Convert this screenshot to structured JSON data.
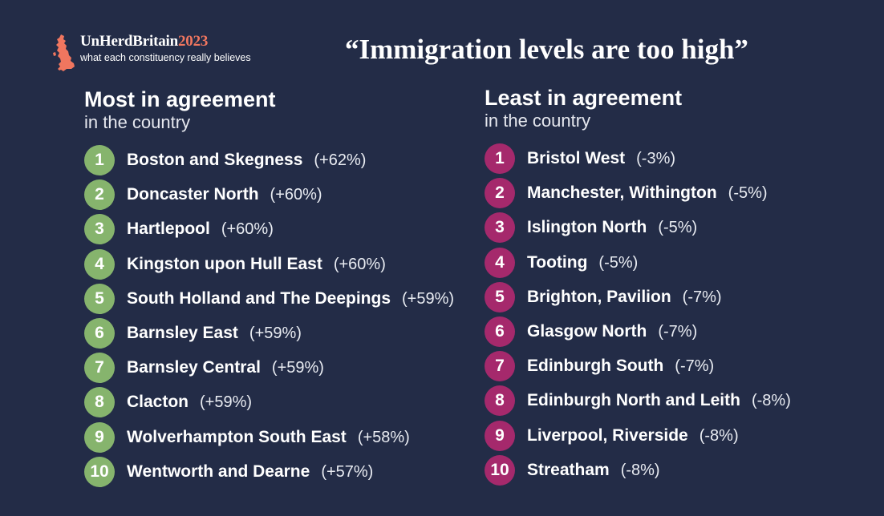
{
  "logo": {
    "brand_main": "UnHerdBritain",
    "brand_year": "2023",
    "tagline": "what each constituency really believes",
    "icon": "uk-map-icon",
    "accent_color": "#f0765f"
  },
  "headline": "“Immigration levels are too high”",
  "colors": {
    "background": "#232c47",
    "most_badge": "#86b46d",
    "least_badge": "#a5296c"
  },
  "most": {
    "title": "Most in agreement",
    "subtitle": "in the country",
    "items": [
      {
        "rank": "1",
        "name": "Boston and Skegness",
        "pct": "(+62%)"
      },
      {
        "rank": "2",
        "name": "Doncaster North",
        "pct": "(+60%)"
      },
      {
        "rank": "3",
        "name": "Hartlepool",
        "pct": "(+60%)"
      },
      {
        "rank": "4",
        "name": "Kingston upon Hull East",
        "pct": "(+60%)"
      },
      {
        "rank": "5",
        "name": "South Holland and The Deepings",
        "pct": "(+59%)"
      },
      {
        "rank": "6",
        "name": "Barnsley East",
        "pct": "(+59%)"
      },
      {
        "rank": "7",
        "name": "Barnsley Central",
        "pct": "(+59%)"
      },
      {
        "rank": "8",
        "name": "Clacton",
        "pct": "(+59%)"
      },
      {
        "rank": "9",
        "name": "Wolverhampton South East",
        "pct": "(+58%)"
      },
      {
        "rank": "10",
        "name": "Wentworth and Dearne",
        "pct": "(+57%)"
      }
    ]
  },
  "least": {
    "title": "Least in agreement",
    "subtitle": "in the country",
    "items": [
      {
        "rank": "1",
        "name": "Bristol West",
        "pct": "(-3%)"
      },
      {
        "rank": "2",
        "name": "Manchester, Withington",
        "pct": "(-5%)"
      },
      {
        "rank": "3",
        "name": "Islington North",
        "pct": "(-5%)"
      },
      {
        "rank": "4",
        "name": "Tooting",
        "pct": "(-5%)"
      },
      {
        "rank": "5",
        "name": "Brighton, Pavilion",
        "pct": "(-7%)"
      },
      {
        "rank": "6",
        "name": "Glasgow North",
        "pct": "(-7%)"
      },
      {
        "rank": "7",
        "name": "Edinburgh South",
        "pct": "(-7%)"
      },
      {
        "rank": "8",
        "name": "Edinburgh North and Leith",
        "pct": "(-8%)"
      },
      {
        "rank": "9",
        "name": "Liverpool, Riverside",
        "pct": "(-8%)"
      },
      {
        "rank": "10",
        "name": "Streatham",
        "pct": "(-8%)"
      }
    ]
  }
}
